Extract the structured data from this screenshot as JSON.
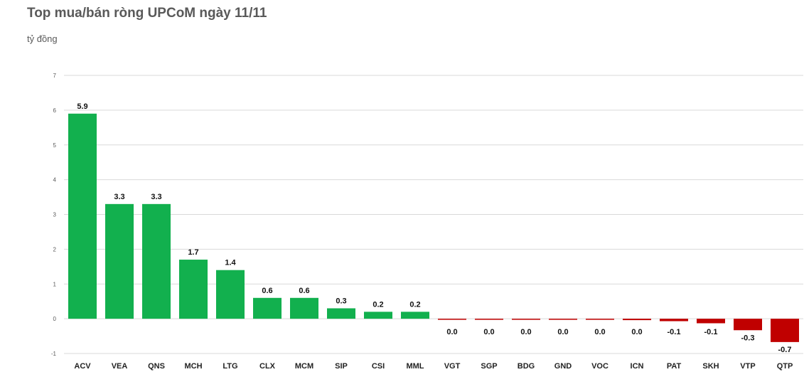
{
  "chart_data": {
    "type": "bar",
    "title": "Top mua/bán ròng UPCoM ngày 11/11",
    "unit_label": "tỷ đồng",
    "categories": [
      "ACV",
      "VEA",
      "QNS",
      "MCH",
      "LTG",
      "CLX",
      "MCM",
      "SIP",
      "CSI",
      "MML",
      "VGT",
      "SGP",
      "BDG",
      "GND",
      "VOC",
      "ICN",
      "PAT",
      "SKH",
      "VTP",
      "QTP"
    ],
    "values": [
      5.9,
      3.3,
      3.3,
      1.7,
      1.4,
      0.6,
      0.6,
      0.3,
      0.2,
      0.2,
      -0.02,
      -0.02,
      -0.02,
      -0.02,
      -0.02,
      -0.04,
      -0.07,
      -0.13,
      -0.33,
      -0.67
    ],
    "data_labels": [
      "5.9",
      "3.3",
      "3.3",
      "1.7",
      "1.4",
      "0.6",
      "0.6",
      "0.3",
      "0.2",
      "0.2",
      "0.0",
      "0.0",
      "0.0",
      "0.0",
      "0.0",
      "0.0",
      "-0.1",
      "-0.1",
      "-0.3",
      "-0.7"
    ],
    "ylim": [
      -1,
      7
    ],
    "yticks": [
      "-1",
      "0",
      "1",
      "2",
      "3",
      "4",
      "5",
      "6",
      "7"
    ],
    "grid": true,
    "legend": "none",
    "colors": {
      "positive": "#12b04e",
      "negative": "#c00000",
      "grid": "#d9d9d9"
    }
  }
}
